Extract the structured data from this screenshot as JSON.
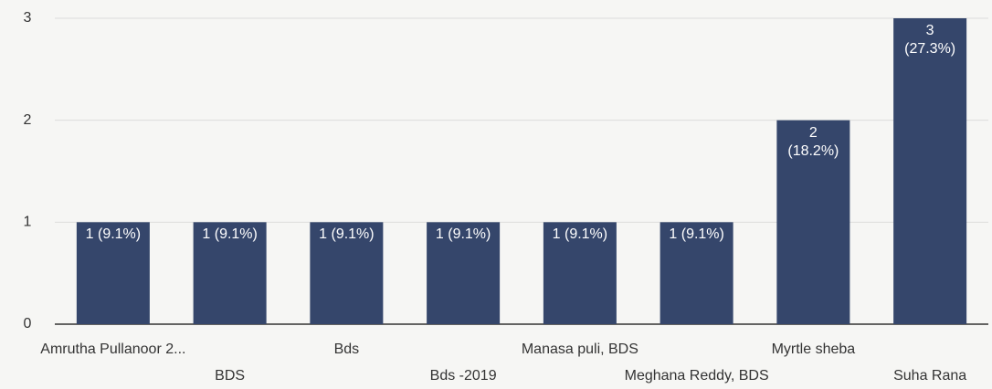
{
  "chart_data": {
    "type": "bar",
    "categories": [
      "Amrutha Pullanoor 2...",
      "BDS",
      "Bds",
      "Bds -2019",
      "Manasa puli, BDS",
      "Meghana Reddy, BDS",
      "Myrtle sheba",
      "Suha Rana"
    ],
    "values": [
      1,
      1,
      1,
      1,
      1,
      1,
      2,
      3
    ],
    "value_labels": [
      "1 (9.1%)",
      "1 (9.1%)",
      "1 (9.1%)",
      "1 (9.1%)",
      "1 (9.1%)",
      "1 (9.1%)",
      "2 (18.2%)",
      "3 (27.3%)"
    ],
    "color": "#35466b",
    "ylim": [
      0,
      3
    ],
    "yticks": [
      0,
      1,
      2,
      3
    ],
    "grid": true
  }
}
